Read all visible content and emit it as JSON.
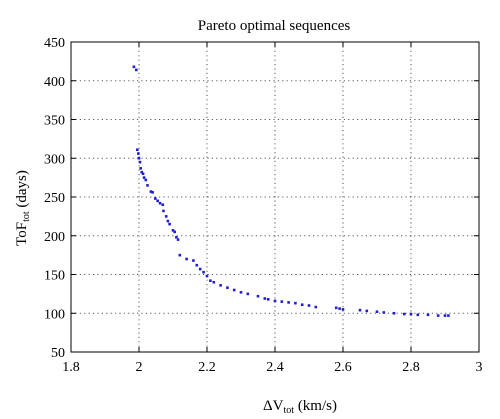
{
  "chart_data": {
    "type": "scatter",
    "title": "Pareto optimal sequences",
    "xlabel": {
      "main": "ΔV",
      "sub": "tot",
      "unit": " (km/s)"
    },
    "ylabel": {
      "main": "ToF",
      "sub": "tot",
      "unit": " (days)"
    },
    "xlim": [
      1.8,
      3.0
    ],
    "ylim": [
      50,
      450
    ],
    "xticks": [
      1.8,
      2.0,
      2.2,
      2.4,
      2.6,
      2.8,
      3.0
    ],
    "xtick_labels": [
      "1.8",
      "2",
      "2.2",
      "2.4",
      "2.6",
      "2.8",
      "3"
    ],
    "yticks": [
      50,
      100,
      150,
      200,
      250,
      300,
      350,
      400,
      450
    ],
    "ytick_labels": [
      "50",
      "100",
      "150",
      "200",
      "250",
      "300",
      "350",
      "400",
      "450"
    ],
    "grid": true,
    "marker_color": "#1f1fd0",
    "points": [
      {
        "x": 1.985,
        "y": 418
      },
      {
        "x": 1.992,
        "y": 414
      },
      {
        "x": 1.995,
        "y": 311
      },
      {
        "x": 1.998,
        "y": 306
      },
      {
        "x": 2.0,
        "y": 300
      },
      {
        "x": 2.003,
        "y": 295
      },
      {
        "x": 2.005,
        "y": 287
      },
      {
        "x": 2.008,
        "y": 282
      },
      {
        "x": 2.012,
        "y": 280
      },
      {
        "x": 2.015,
        "y": 275
      },
      {
        "x": 2.02,
        "y": 272
      },
      {
        "x": 2.025,
        "y": 265
      },
      {
        "x": 2.035,
        "y": 257
      },
      {
        "x": 2.04,
        "y": 256
      },
      {
        "x": 2.048,
        "y": 248
      },
      {
        "x": 2.055,
        "y": 245
      },
      {
        "x": 2.062,
        "y": 242
      },
      {
        "x": 2.07,
        "y": 240
      },
      {
        "x": 2.072,
        "y": 232
      },
      {
        "x": 2.08,
        "y": 225
      },
      {
        "x": 2.085,
        "y": 219
      },
      {
        "x": 2.09,
        "y": 215
      },
      {
        "x": 2.1,
        "y": 207
      },
      {
        "x": 2.105,
        "y": 205
      },
      {
        "x": 2.11,
        "y": 198
      },
      {
        "x": 2.115,
        "y": 195
      },
      {
        "x": 2.12,
        "y": 175
      },
      {
        "x": 2.14,
        "y": 170
      },
      {
        "x": 2.16,
        "y": 168
      },
      {
        "x": 2.17,
        "y": 162
      },
      {
        "x": 2.18,
        "y": 157
      },
      {
        "x": 2.19,
        "y": 153
      },
      {
        "x": 2.2,
        "y": 148
      },
      {
        "x": 2.21,
        "y": 142
      },
      {
        "x": 2.22,
        "y": 140
      },
      {
        "x": 2.24,
        "y": 136
      },
      {
        "x": 2.26,
        "y": 133
      },
      {
        "x": 2.28,
        "y": 130
      },
      {
        "x": 2.3,
        "y": 127
      },
      {
        "x": 2.32,
        "y": 125
      },
      {
        "x": 2.35,
        "y": 122
      },
      {
        "x": 2.37,
        "y": 119
      },
      {
        "x": 2.38,
        "y": 118
      },
      {
        "x": 2.4,
        "y": 116
      },
      {
        "x": 2.42,
        "y": 115
      },
      {
        "x": 2.44,
        "y": 114
      },
      {
        "x": 2.46,
        "y": 113
      },
      {
        "x": 2.48,
        "y": 111
      },
      {
        "x": 2.5,
        "y": 110
      },
      {
        "x": 2.52,
        "y": 108
      },
      {
        "x": 2.58,
        "y": 107
      },
      {
        "x": 2.59,
        "y": 106
      },
      {
        "x": 2.6,
        "y": 105
      },
      {
        "x": 2.65,
        "y": 104
      },
      {
        "x": 2.67,
        "y": 103
      },
      {
        "x": 2.7,
        "y": 102
      },
      {
        "x": 2.72,
        "y": 101
      },
      {
        "x": 2.75,
        "y": 100
      },
      {
        "x": 2.78,
        "y": 99
      },
      {
        "x": 2.8,
        "y": 99
      },
      {
        "x": 2.82,
        "y": 98
      },
      {
        "x": 2.85,
        "y": 98
      },
      {
        "x": 2.88,
        "y": 97
      },
      {
        "x": 2.9,
        "y": 97
      },
      {
        "x": 2.91,
        "y": 97
      }
    ]
  }
}
